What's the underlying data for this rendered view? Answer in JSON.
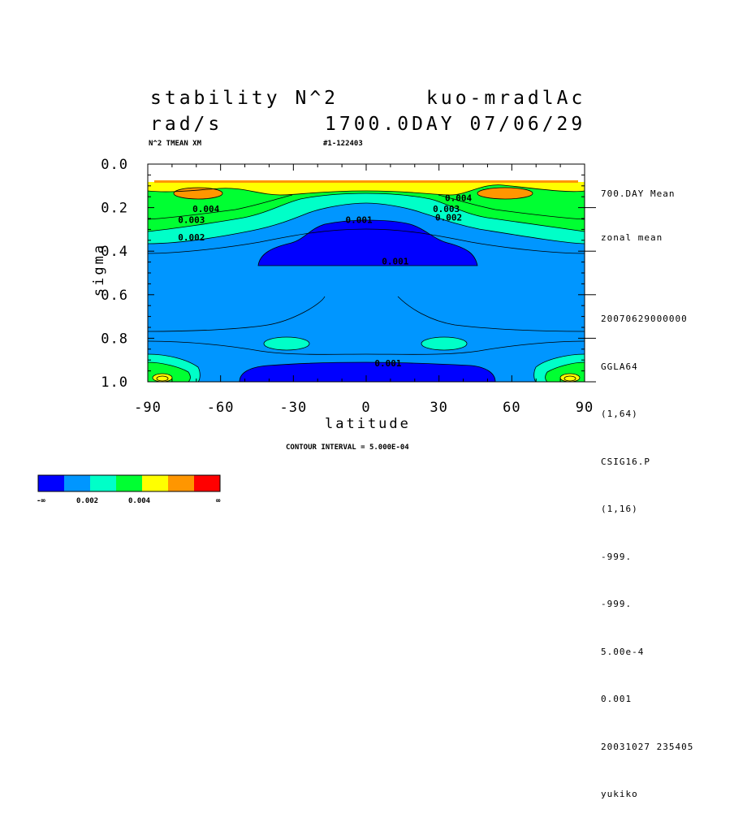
{
  "header": {
    "title_left": "stability N^2",
    "title_right": "kuo-mradlAc",
    "units": "rad/s",
    "time_label": "1700.0DAY 07/06/29",
    "var_label": "N^2 TMEAN XM",
    "run_id": "#1-122403"
  },
  "side_info": [
    "700.DAY Mean",
    "zonal mean",
    "20070629000000",
    "GGLA64",
    "(1,64)",
    "CSIG16.P",
    "(1,16)",
    "-999.",
    "-999.",
    "5.00e-4",
    "0.001",
    "20031027 235405",
    "yukiko"
  ],
  "footer": {
    "contour_interval": "CONTOUR INTERVAL = 5.000E-04"
  },
  "colorbar": {
    "colors": [
      "#0000ff",
      "#0096ff",
      "#00ffc8",
      "#00ff32",
      "#ffff00",
      "#ff9600",
      "#ff0000"
    ],
    "labels": [
      "-∞",
      "0.002",
      "0.004",
      "∞"
    ]
  },
  "chart_data": {
    "type": "contour",
    "xlabel": "latitude",
    "ylabel": "sigma",
    "xlim": [
      -90,
      90
    ],
    "ylim": [
      1.0,
      0.0
    ],
    "x_ticks": [
      "-90",
      "-60",
      "-30",
      "0",
      "30",
      "60",
      "90"
    ],
    "y_ticks": [
      "0.0",
      "0.2",
      "0.4",
      "0.6",
      "0.8",
      "1.0"
    ],
    "contour_interval": 0.0005,
    "contour_labels": [
      {
        "text": "0.004",
        "lat": -66,
        "sigma": 0.22
      },
      {
        "text": "0.003",
        "lat": -72,
        "sigma": 0.27
      },
      {
        "text": "0.002",
        "lat": -72,
        "sigma": 0.35
      },
      {
        "text": "0.001",
        "lat": -3,
        "sigma": 0.27
      },
      {
        "text": "0.001",
        "lat": 12,
        "sigma": 0.46
      },
      {
        "text": "0.004",
        "lat": 38,
        "sigma": 0.17
      },
      {
        "text": "0.003",
        "lat": 33,
        "sigma": 0.22
      },
      {
        "text": "0.002",
        "lat": 34,
        "sigma": 0.26
      },
      {
        "text": "0.001",
        "lat": 9,
        "sigma": 0.93
      }
    ],
    "regions": [
      {
        "level": "<0.0005",
        "description": "upper tropics minimum",
        "lat_range": [
          -46,
          46
        ],
        "sigma_range": [
          0.27,
          0.48
        ]
      },
      {
        "level": "<0.0005",
        "description": "near-surface minimum",
        "lat_range": [
          -52,
          52
        ],
        "sigma_range": [
          0.93,
          1.0
        ]
      },
      {
        "level": "0.0030-0.0035",
        "description": "upper-level maxima",
        "lat_range": [
          -75,
          -55
        ],
        "sigma_range": [
          0.1,
          0.15
        ]
      },
      {
        "level": "0.0030-0.0035",
        "description": "upper-level maxima",
        "lat_range": [
          55,
          75
        ],
        "sigma_range": [
          0.1,
          0.15
        ]
      }
    ]
  }
}
